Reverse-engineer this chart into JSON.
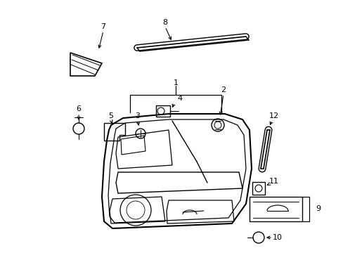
{
  "bg_color": "#ffffff",
  "line_color": "#000000",
  "lw_main": 1.5,
  "lw_inner": 1.0,
  "lw_thin": 0.8,
  "fontsize": 8
}
